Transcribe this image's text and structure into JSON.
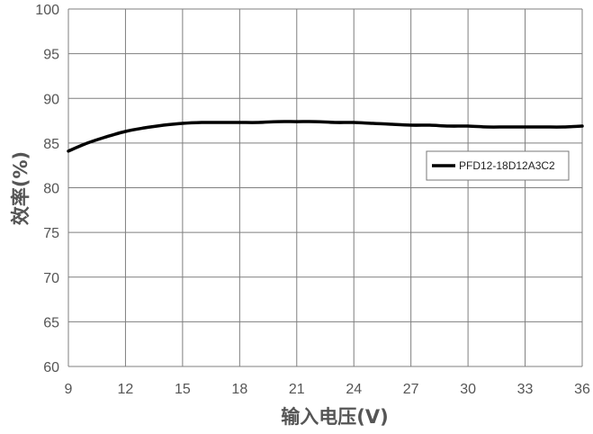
{
  "chart_data": {
    "type": "line",
    "title": "",
    "xlabel": "输入电压(V)",
    "ylabel": "效率(%)",
    "x_ticks": [
      9,
      12,
      15,
      18,
      21,
      24,
      27,
      30,
      33,
      36
    ],
    "y_ticks": [
      60,
      65,
      70,
      75,
      80,
      85,
      90,
      95,
      100
    ],
    "xlim": [
      9,
      36
    ],
    "ylim": [
      60,
      100
    ],
    "grid": true,
    "legend_position": "right",
    "series": [
      {
        "name": "PFD12-18D12A3C2",
        "color": "#000000",
        "x": [
          9,
          10,
          11,
          12,
          13,
          14,
          15,
          16,
          17,
          18,
          19,
          20,
          21,
          22,
          23,
          24,
          25,
          26,
          27,
          28,
          29,
          30,
          31,
          32,
          33,
          34,
          35,
          36
        ],
        "y": [
          84.1,
          85.0,
          85.7,
          86.3,
          86.7,
          87.0,
          87.2,
          87.3,
          87.3,
          87.3,
          87.3,
          87.4,
          87.4,
          87.4,
          87.3,
          87.3,
          87.2,
          87.1,
          87.0,
          87.0,
          86.9,
          86.9,
          86.8,
          86.8,
          86.8,
          86.8,
          86.8,
          86.9
        ]
      }
    ]
  }
}
